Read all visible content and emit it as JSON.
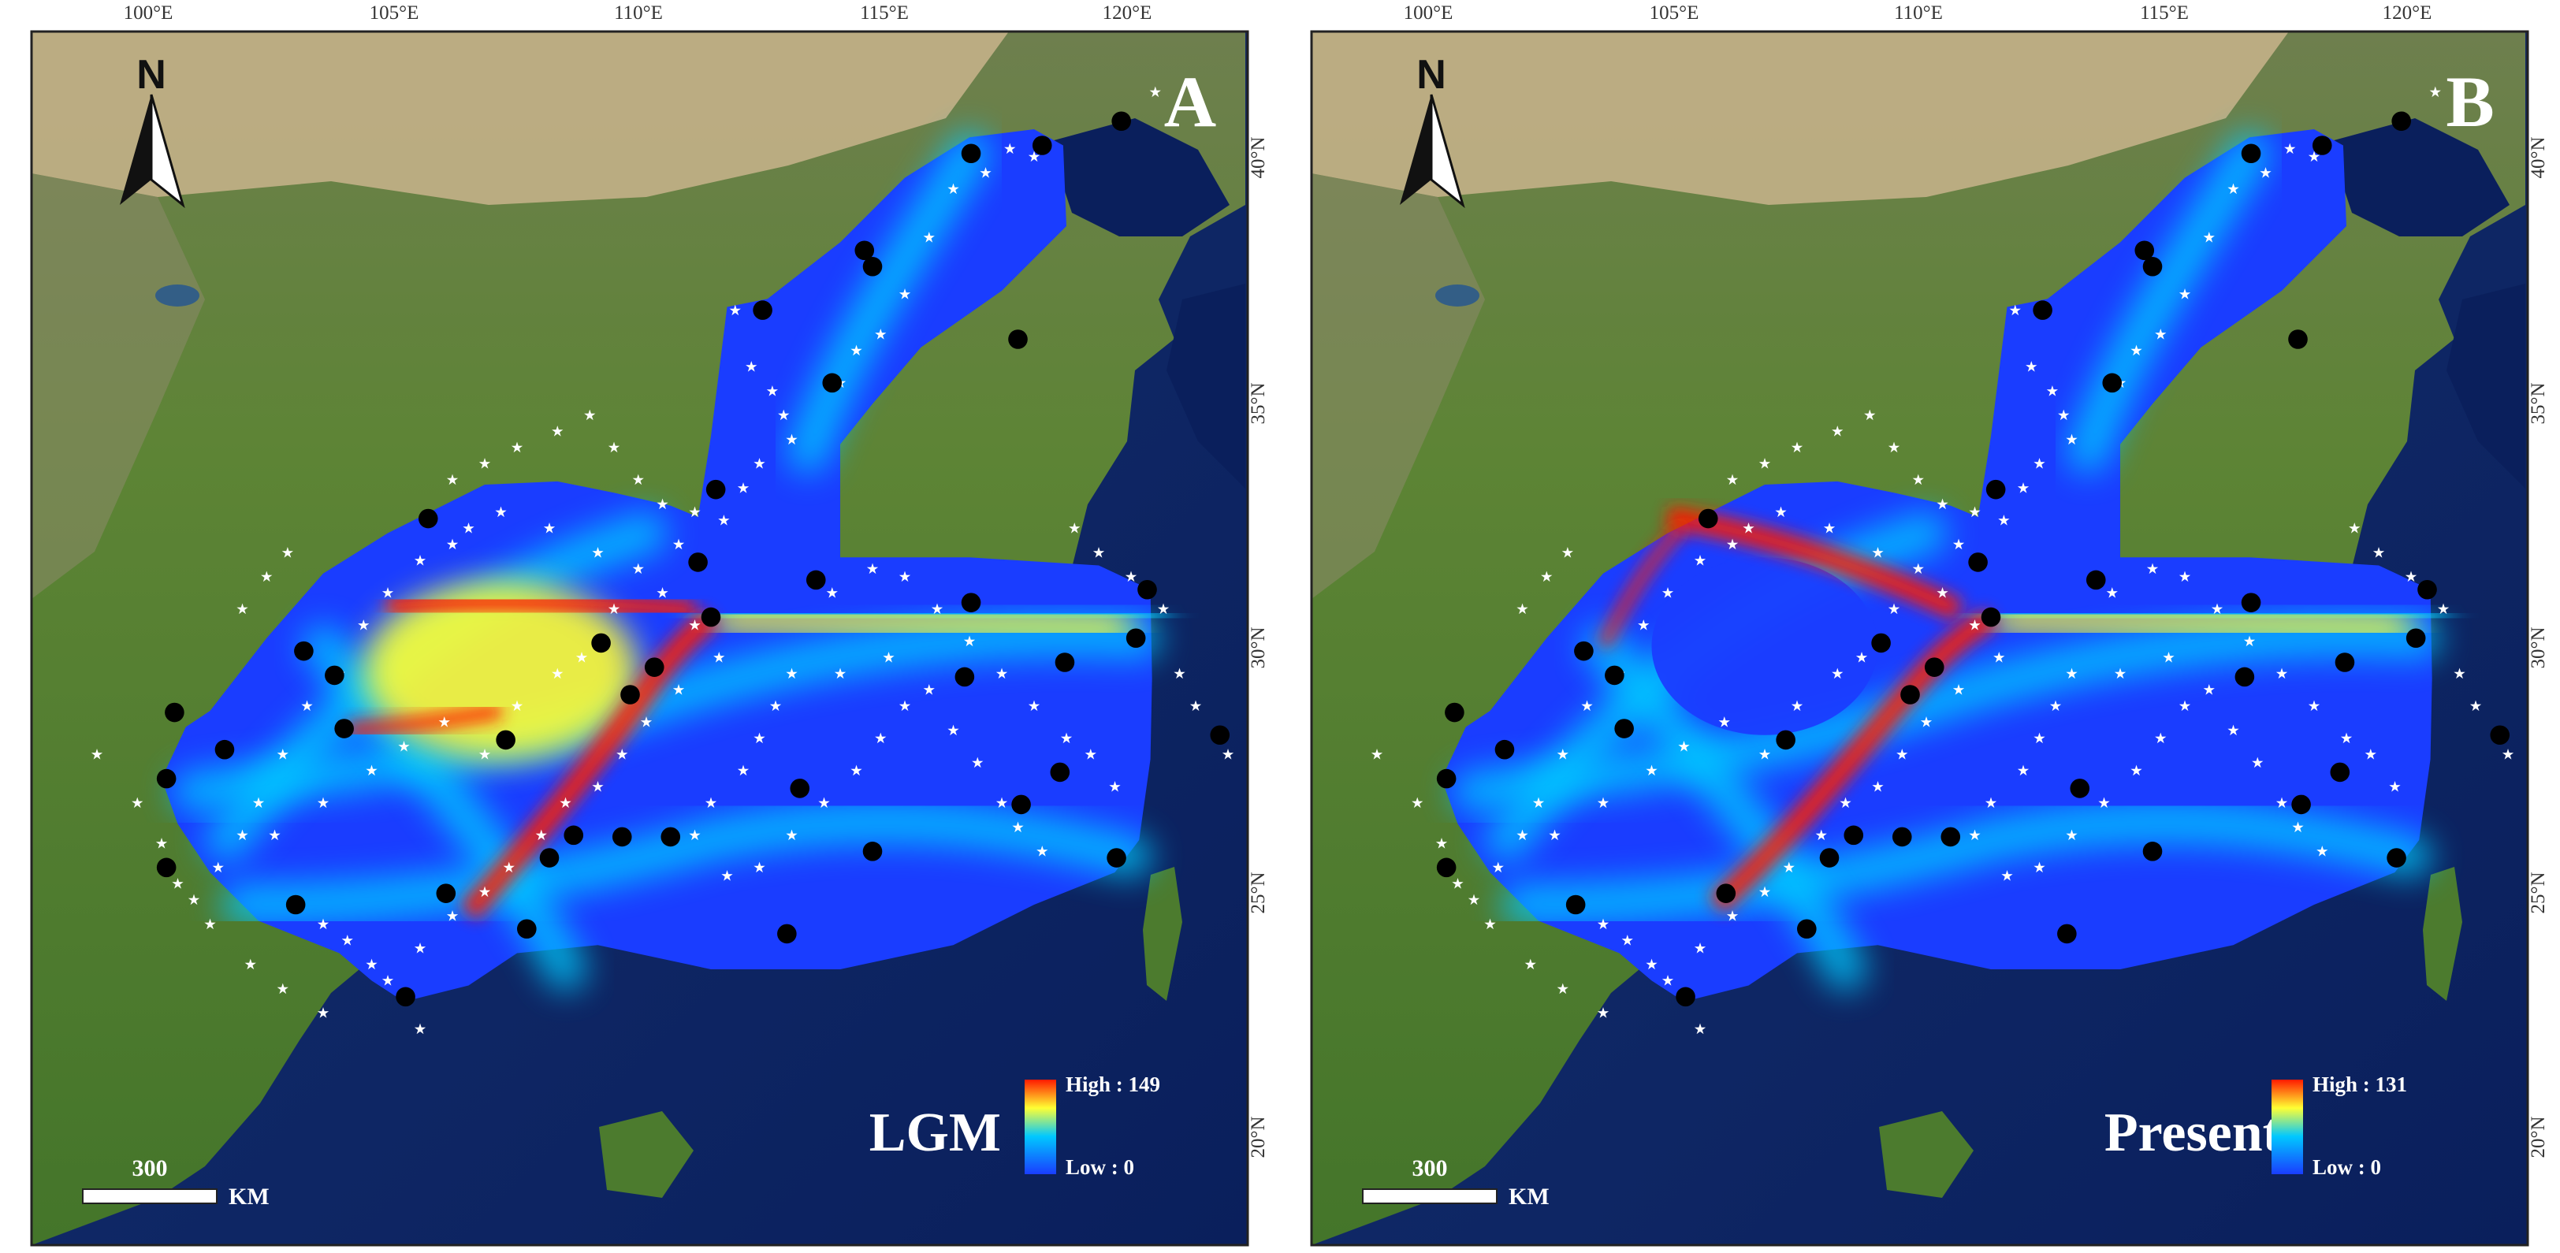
{
  "figure": {
    "panels": [
      {
        "id": "A",
        "letter": "A",
        "scenario": "LGM",
        "legend_high": "High : 149",
        "legend_low": "Low : 0",
        "high_value": 149,
        "low_value": 0,
        "hotspot": "southwest"
      },
      {
        "id": "B",
        "letter": "B",
        "scenario": "Present",
        "legend_high": "High : 131",
        "legend_low": "Low : 0",
        "high_value": 131,
        "low_value": 0,
        "hotspot": "northwest"
      }
    ],
    "top_axis_labels": [
      "100°E",
      "105°E",
      "110°E",
      "115°E",
      "120°E"
    ],
    "right_axis_labels": [
      "40°N",
      "35°N",
      "30°N",
      "25°N",
      "20°N"
    ],
    "scale_value": "300",
    "scale_unit": "KM",
    "north_label": "N",
    "colors": {
      "low": "#1a3dff",
      "mid": "#00c8ff",
      "midhigh": "#ffff33",
      "high": "#ff1a00",
      "sea": "#0a1f5c",
      "land_green": "#4f7a32",
      "desert": "#c9b48c",
      "points_sampled": "#000000",
      "points_records": "#ffffff"
    }
  }
}
